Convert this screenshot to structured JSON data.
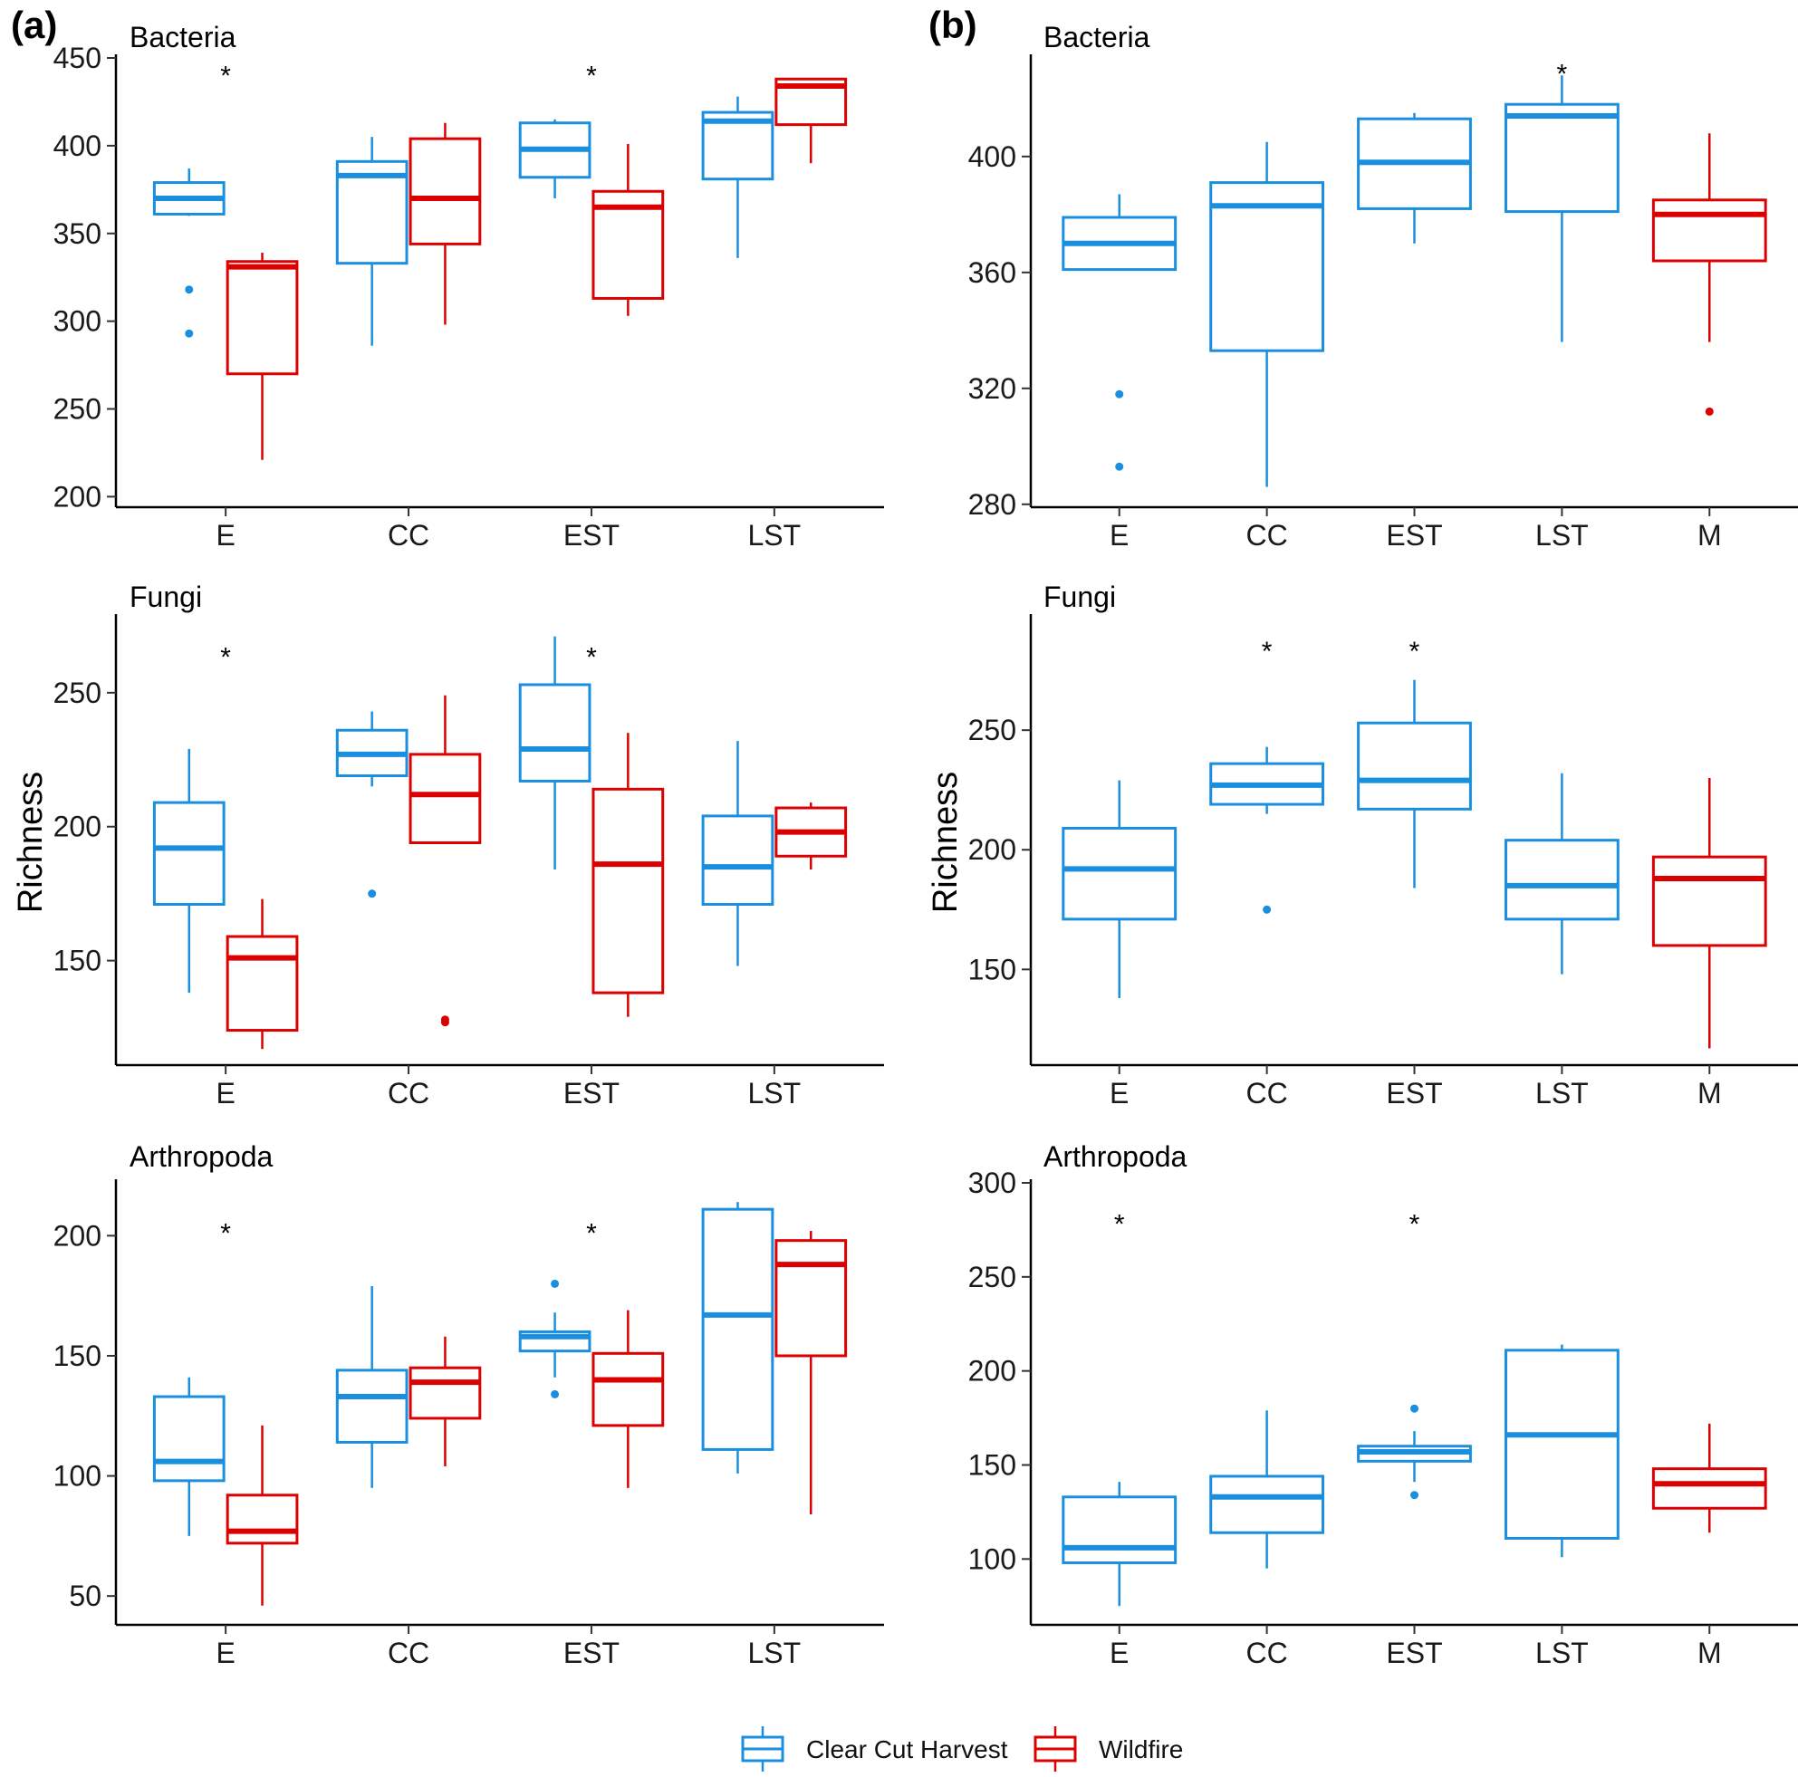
{
  "colors": {
    "clear_cut": "#1a8fe0",
    "wildfire": "#dc0000"
  },
  "legend": {
    "items": [
      {
        "label": "Clear Cut Harvest",
        "key": "clear_cut"
      },
      {
        "label": "Wildfire",
        "key": "wildfire"
      }
    ]
  },
  "panels": [
    {
      "id": "a",
      "label": "(a)"
    },
    {
      "id": "b",
      "label": "(b)"
    }
  ],
  "chart_data": [
    {
      "type": "boxplot",
      "panel": "a",
      "title": "Bacteria",
      "ylabel": "",
      "categories": [
        "E",
        "CC",
        "EST",
        "LST"
      ],
      "yticks": [
        200,
        250,
        300,
        350,
        400,
        450
      ],
      "ylim": [
        194,
        450
      ],
      "xlim": [
        0.4,
        4.6
      ],
      "significance": [
        {
          "category": "E",
          "y": 444
        },
        {
          "category": "EST",
          "y": 444
        }
      ],
      "boxes": [
        {
          "category": "E",
          "series": "clear_cut",
          "lower": 360,
          "q1": 361,
          "median": 370,
          "q3": 379,
          "upper": 387,
          "outliers": [
            318,
            293
          ]
        },
        {
          "category": "E",
          "series": "wildfire",
          "lower": 221,
          "q1": 270,
          "median": 331,
          "q3": 334,
          "upper": 339,
          "outliers": []
        },
        {
          "category": "CC",
          "series": "clear_cut",
          "lower": 286,
          "q1": 333,
          "median": 383,
          "q3": 391,
          "upper": 405,
          "outliers": []
        },
        {
          "category": "CC",
          "series": "wildfire",
          "lower": 298,
          "q1": 344,
          "median": 370,
          "q3": 404,
          "upper": 413,
          "outliers": []
        },
        {
          "category": "EST",
          "series": "clear_cut",
          "lower": 370,
          "q1": 382,
          "median": 398,
          "q3": 413,
          "upper": 415,
          "outliers": []
        },
        {
          "category": "EST",
          "series": "wildfire",
          "lower": 303,
          "q1": 313,
          "median": 365,
          "q3": 374,
          "upper": 401,
          "outliers": []
        },
        {
          "category": "LST",
          "series": "clear_cut",
          "lower": 336,
          "q1": 381,
          "median": 414,
          "q3": 419,
          "upper": 428,
          "outliers": []
        },
        {
          "category": "LST",
          "series": "wildfire",
          "lower": 390,
          "q1": 412,
          "median": 434,
          "q3": 438,
          "upper": 438,
          "outliers": []
        }
      ]
    },
    {
      "type": "boxplot",
      "panel": "a",
      "title": "Fungi",
      "ylabel": "Richness",
      "categories": [
        "E",
        "CC",
        "EST",
        "LST"
      ],
      "yticks": [
        150,
        200,
        250
      ],
      "ylim": [
        111,
        278
      ],
      "xlim": [
        0.4,
        4.6
      ],
      "significance": [
        {
          "category": "E",
          "y": 266
        },
        {
          "category": "EST",
          "y": 266
        }
      ],
      "boxes": [
        {
          "category": "E",
          "series": "clear_cut",
          "lower": 138,
          "q1": 171,
          "median": 192,
          "q3": 209,
          "upper": 229,
          "outliers": []
        },
        {
          "category": "E",
          "series": "wildfire",
          "lower": 117,
          "q1": 124,
          "median": 151,
          "q3": 159,
          "upper": 173,
          "outliers": []
        },
        {
          "category": "CC",
          "series": "clear_cut",
          "lower": 215,
          "q1": 219,
          "median": 227,
          "q3": 236,
          "upper": 243,
          "outliers": [
            175
          ]
        },
        {
          "category": "CC",
          "series": "wildfire",
          "lower": 194,
          "q1": 194,
          "median": 212,
          "q3": 227,
          "upper": 249,
          "outliers": [
            128,
            127
          ]
        },
        {
          "category": "EST",
          "series": "clear_cut",
          "lower": 184,
          "q1": 217,
          "median": 229,
          "q3": 253,
          "upper": 271,
          "outliers": []
        },
        {
          "category": "EST",
          "series": "wildfire",
          "lower": 129,
          "q1": 138,
          "median": 186,
          "q3": 214,
          "upper": 235,
          "outliers": []
        },
        {
          "category": "LST",
          "series": "clear_cut",
          "lower": 148,
          "q1": 171,
          "median": 185,
          "q3": 204,
          "upper": 232,
          "outliers": []
        },
        {
          "category": "LST",
          "series": "wildfire",
          "lower": 184,
          "q1": 189,
          "median": 198,
          "q3": 207,
          "upper": 209,
          "outliers": []
        }
      ]
    },
    {
      "type": "boxplot",
      "panel": "a",
      "title": "Arthropoda",
      "ylabel": "",
      "categories": [
        "E",
        "CC",
        "EST",
        "LST"
      ],
      "yticks": [
        50,
        100,
        150,
        200
      ],
      "ylim": [
        38,
        222
      ],
      "xlim": [
        0.4,
        4.6
      ],
      "significance": [
        {
          "category": "E",
          "y": 204
        },
        {
          "category": "EST",
          "y": 204
        }
      ],
      "boxes": [
        {
          "category": "E",
          "series": "clear_cut",
          "lower": 75,
          "q1": 98,
          "median": 106,
          "q3": 133,
          "upper": 141,
          "outliers": []
        },
        {
          "category": "E",
          "series": "wildfire",
          "lower": 46,
          "q1": 72,
          "median": 77,
          "q3": 92,
          "upper": 121,
          "outliers": []
        },
        {
          "category": "CC",
          "series": "clear_cut",
          "lower": 95,
          "q1": 114,
          "median": 133,
          "q3": 144,
          "upper": 179,
          "outliers": []
        },
        {
          "category": "CC",
          "series": "wildfire",
          "lower": 104,
          "q1": 124,
          "median": 139,
          "q3": 145,
          "upper": 158,
          "outliers": []
        },
        {
          "category": "EST",
          "series": "clear_cut",
          "lower": 141,
          "q1": 152,
          "median": 158,
          "q3": 160,
          "upper": 168,
          "outliers": [
            180,
            134
          ]
        },
        {
          "category": "EST",
          "series": "wildfire",
          "lower": 95,
          "q1": 121,
          "median": 140,
          "q3": 151,
          "upper": 169,
          "outliers": []
        },
        {
          "category": "LST",
          "series": "clear_cut",
          "lower": 101,
          "q1": 111,
          "median": 167,
          "q3": 211,
          "upper": 214,
          "outliers": []
        },
        {
          "category": "LST",
          "series": "wildfire",
          "lower": 84,
          "q1": 150,
          "median": 188,
          "q3": 198,
          "upper": 202,
          "outliers": []
        }
      ]
    },
    {
      "type": "boxplot",
      "panel": "b",
      "title": "Bacteria",
      "ylabel": "",
      "categories": [
        "E",
        "CC",
        "EST",
        "LST",
        "M"
      ],
      "yticks": [
        280,
        320,
        360,
        400
      ],
      "ylim": [
        279,
        434
      ],
      "xlim": [
        0.4,
        5.6
      ],
      "significance": [
        {
          "category": "LST",
          "y": 431
        }
      ],
      "boxes": [
        {
          "category": "E",
          "series": "clear_cut",
          "lower": 361,
          "q1": 361,
          "median": 370,
          "q3": 379,
          "upper": 387,
          "outliers": [
            318,
            293
          ]
        },
        {
          "category": "CC",
          "series": "clear_cut",
          "lower": 286,
          "q1": 333,
          "median": 383,
          "q3": 391,
          "upper": 405,
          "outliers": []
        },
        {
          "category": "EST",
          "series": "clear_cut",
          "lower": 370,
          "q1": 382,
          "median": 398,
          "q3": 413,
          "upper": 415,
          "outliers": []
        },
        {
          "category": "LST",
          "series": "clear_cut",
          "lower": 336,
          "q1": 381,
          "median": 414,
          "q3": 418,
          "upper": 428,
          "outliers": []
        },
        {
          "category": "M",
          "series": "wildfire",
          "lower": 336,
          "q1": 364,
          "median": 380,
          "q3": 385,
          "upper": 408,
          "outliers": [
            312
          ]
        }
      ]
    },
    {
      "type": "boxplot",
      "panel": "b",
      "title": "Fungi",
      "ylabel": "Richness",
      "categories": [
        "E",
        "CC",
        "EST",
        "LST",
        "M"
      ],
      "yticks": [
        150,
        200,
        250
      ],
      "ylim": [
        110,
        297
      ],
      "xlim": [
        0.4,
        5.6
      ],
      "significance": [
        {
          "category": "CC",
          "y": 286
        },
        {
          "category": "EST",
          "y": 286
        }
      ],
      "boxes": [
        {
          "category": "E",
          "series": "clear_cut",
          "lower": 138,
          "q1": 171,
          "median": 192,
          "q3": 209,
          "upper": 229,
          "outliers": []
        },
        {
          "category": "CC",
          "series": "clear_cut",
          "lower": 215,
          "q1": 219,
          "median": 227,
          "q3": 236,
          "upper": 243,
          "outliers": [
            175
          ]
        },
        {
          "category": "EST",
          "series": "clear_cut",
          "lower": 184,
          "q1": 217,
          "median": 229,
          "q3": 253,
          "upper": 271,
          "outliers": []
        },
        {
          "category": "LST",
          "series": "clear_cut",
          "lower": 148,
          "q1": 171,
          "median": 185,
          "q3": 204,
          "upper": 232,
          "outliers": []
        },
        {
          "category": "M",
          "series": "wildfire",
          "lower": 117,
          "q1": 160,
          "median": 188,
          "q3": 197,
          "upper": 230,
          "outliers": []
        }
      ]
    },
    {
      "type": "boxplot",
      "panel": "b",
      "title": "Arthropoda",
      "ylabel": "",
      "categories": [
        "E",
        "CC",
        "EST",
        "LST",
        "M"
      ],
      "yticks": [
        100,
        150,
        200,
        250,
        300
      ],
      "ylim": [
        65,
        300
      ],
      "xlim": [
        0.4,
        5.6
      ],
      "significance": [
        {
          "category": "E",
          "y": 282
        },
        {
          "category": "EST",
          "y": 282
        }
      ],
      "boxes": [
        {
          "category": "E",
          "series": "clear_cut",
          "lower": 75,
          "q1": 98,
          "median": 106,
          "q3": 133,
          "upper": 141,
          "outliers": []
        },
        {
          "category": "CC",
          "series": "clear_cut",
          "lower": 95,
          "q1": 114,
          "median": 133,
          "q3": 144,
          "upper": 179,
          "outliers": []
        },
        {
          "category": "EST",
          "series": "clear_cut",
          "lower": 141,
          "q1": 152,
          "median": 157,
          "q3": 160,
          "upper": 168,
          "outliers": [
            180,
            134
          ]
        },
        {
          "category": "LST",
          "series": "clear_cut",
          "lower": 101,
          "q1": 111,
          "median": 166,
          "q3": 211,
          "upper": 214,
          "outliers": []
        },
        {
          "category": "M",
          "series": "wildfire",
          "lower": 114,
          "q1": 127,
          "median": 140,
          "q3": 148,
          "upper": 172,
          "outliers": []
        }
      ]
    }
  ]
}
